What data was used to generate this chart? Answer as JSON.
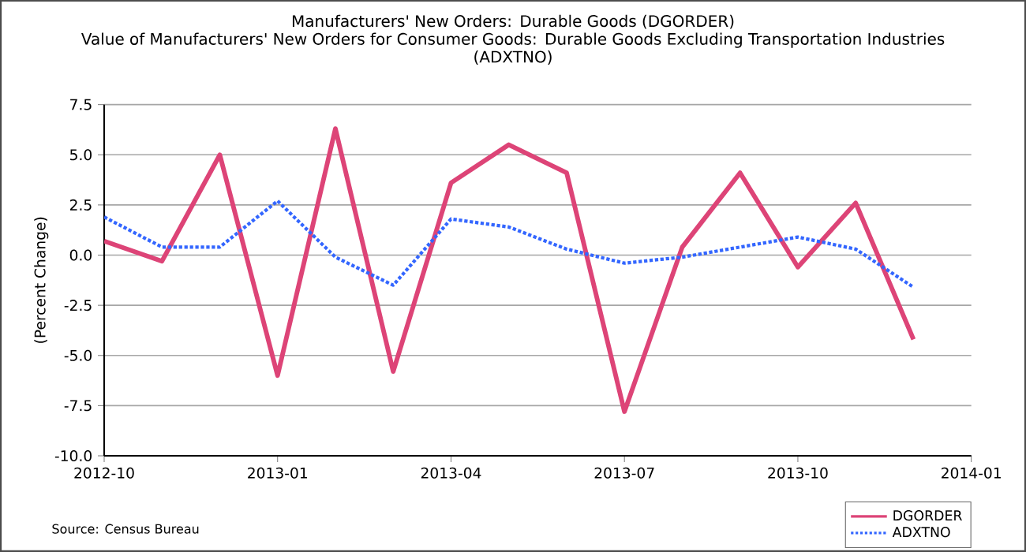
{
  "chart_data": {
    "type": "line",
    "title": "Manufacturers' New Orders: Durable Goods (DGORDER)",
    "subtitle": "Value of Manufacturers' New Orders for Consumer Goods: Durable Goods Excluding Transportation Industries (ADXTNO)",
    "ylabel": "(Percent Change)",
    "x": [
      "2012-10",
      "2012-11",
      "2012-12",
      "2013-01",
      "2013-02",
      "2013-03",
      "2013-04",
      "2013-05",
      "2013-06",
      "2013-07",
      "2013-08",
      "2013-09",
      "2013-10",
      "2013-11",
      "2013-12"
    ],
    "series": [
      {
        "name": "DGORDER",
        "color": "#dd4477",
        "line_style": "solid",
        "values": [
          0.7,
          -0.3,
          5.0,
          -6.0,
          6.3,
          -5.8,
          3.6,
          5.5,
          4.1,
          -7.8,
          0.4,
          4.1,
          -0.6,
          2.6,
          -4.2
        ]
      },
      {
        "name": "ADXTNO",
        "color": "#3366ff",
        "line_style": "dotted",
        "values": [
          1.9,
          0.4,
          0.4,
          2.7,
          -0.1,
          -1.5,
          1.8,
          1.4,
          0.3,
          -0.4,
          -0.1,
          0.4,
          0.9,
          0.3,
          -1.6
        ]
      }
    ],
    "xlim": [
      "2012-10",
      "2014-01"
    ],
    "xticks": [
      "2012-10",
      "2013-01",
      "2013-04",
      "2013-07",
      "2013-10",
      "2014-01"
    ],
    "ylim": [
      -10,
      7.5
    ],
    "yticks": [
      {
        "value": -10,
        "label": "-10.0"
      },
      -7.5,
      {
        "value": -5,
        "label": "-5.0"
      },
      -2.5,
      {
        "value": 0,
        "label": "0.0"
      },
      2.5,
      {
        "value": 5,
        "label": "5.0"
      },
      7.5
    ],
    "grid": "y",
    "legend": "bottom right",
    "marker": "none",
    "annotations": [
      "Source: Census Bureau"
    ]
  }
}
